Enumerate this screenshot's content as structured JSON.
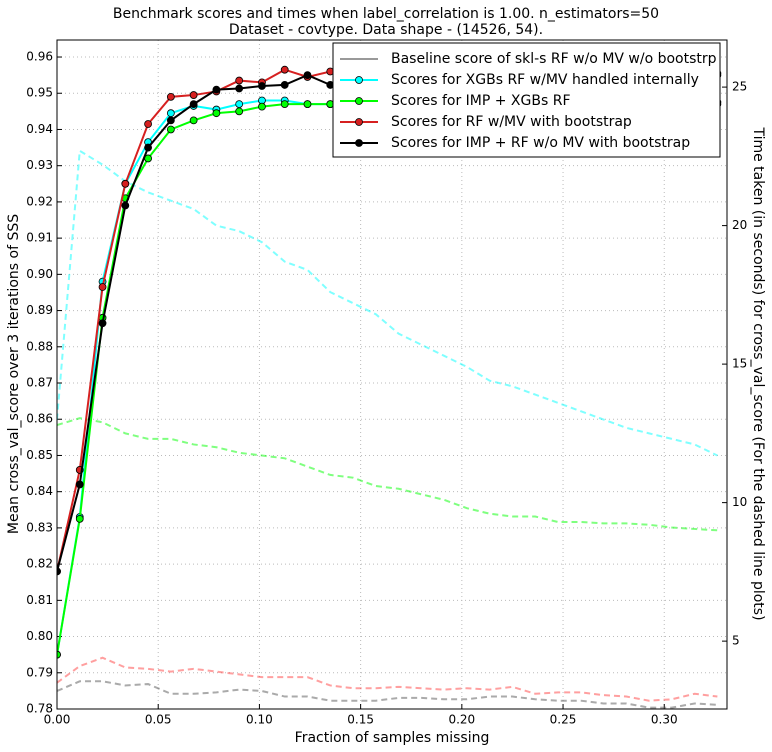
{
  "chart_data": {
    "type": "line",
    "title": "Benchmark scores and times when label_correlation is 1.00. n_estimators=50",
    "subtitle": "Dataset - covtype. Data shape - (14526, 54).",
    "x_label": "Fraction of samples missing",
    "y_label": "Mean cross_val_score over 3 iterations of SSS",
    "y2_label": "Time taken (in seconds) for cross_val_score (For the dashed line plots)",
    "x": [
      0,
      0.01125,
      0.0225,
      0.03375,
      0.045,
      0.05625,
      0.0675,
      0.07875,
      0.09,
      0.10125,
      0.1125,
      0.12375,
      0.135,
      0.14625,
      0.1575,
      0.16875,
      0.18,
      0.19125,
      0.2025,
      0.21375,
      0.225,
      0.23625,
      0.2475,
      0.25875,
      0.27,
      0.28125,
      0.2925,
      0.30375,
      0.315,
      0.32625
    ],
    "xlim": [
      0,
      0.331
    ],
    "ylim": [
      0.78,
      0.9647
    ],
    "y2lim": [
      2.55,
      26.7
    ],
    "xticks": [
      {
        "value": 0,
        "label": "0.00"
      },
      0.05,
      {
        "value": 0.1,
        "label": "0.10"
      },
      0.15,
      {
        "value": 0.2,
        "label": "0.20"
      },
      0.25,
      {
        "value": 0.3,
        "label": "0.30"
      }
    ],
    "yticks": [
      0.78,
      0.79,
      {
        "value": 0.8,
        "label": "0.80"
      },
      0.81,
      0.82,
      0.83,
      0.84,
      0.85,
      0.86,
      0.87,
      0.88,
      0.89,
      {
        "value": 0.9,
        "label": "0.90"
      },
      0.91,
      0.92,
      0.93,
      0.94,
      0.95,
      0.96
    ],
    "y2ticks": [
      5,
      10,
      15,
      20,
      25
    ],
    "grid": true,
    "legend_position": "upper right",
    "legend": [
      {
        "label": "Baseline score of skl-s RF w/o MV w/o bootstrp",
        "color": "#999999",
        "marker": false
      },
      {
        "label": "Scores for XGBs RF w/MV handled internally",
        "color": "#00ffff",
        "marker": true
      },
      {
        "label": "Scores for IMP + XGBs RF",
        "color": "#00ff00",
        "marker": true
      },
      {
        "label": "Scores for RF w/MV with bootstrap",
        "color": "#d62020",
        "marker": true
      },
      {
        "label": "Scores for IMP + RF w/o MV with bootstrap",
        "color": "#000000",
        "marker": true
      }
    ],
    "series": [
      {
        "color": "#00ffff",
        "dashed": true,
        "axis": "y2",
        "values": [
          13,
          22.7,
          22.2,
          21.6,
          21.2,
          20.9,
          20.6,
          20,
          19.8,
          19.4,
          18.7,
          18.4,
          17.6,
          17.2,
          16.8,
          16.1,
          15.7,
          15.3,
          14.9,
          14.4,
          14.2,
          13.9,
          13.6,
          13.3,
          13,
          12.7,
          12.5,
          12.3,
          12.1,
          11.7
        ]
      },
      {
        "color": "#00ff00",
        "dashed": true,
        "axis": "y2",
        "values": [
          12.8,
          13.05,
          12.9,
          12.5,
          12.3,
          12.3,
          12.1,
          12,
          11.8,
          11.7,
          11.6,
          11.3,
          11,
          10.9,
          10.6,
          10.5,
          10.3,
          10.1,
          9.8,
          9.6,
          9.5,
          9.5,
          9.3,
          9.3,
          9.25,
          9.25,
          9.2,
          9.1,
          9.05,
          9
        ]
      },
      {
        "color": "#ff4040",
        "dashed": true,
        "axis": "y2",
        "values": [
          3.5,
          4.1,
          4.4,
          4.05,
          4,
          3.9,
          4,
          3.9,
          3.8,
          3.7,
          3.7,
          3.7,
          3.4,
          3.3,
          3.3,
          3.35,
          3.3,
          3.25,
          3.3,
          3.25,
          3.35,
          3.1,
          3.15,
          3.15,
          3.05,
          3,
          2.85,
          2.9,
          3.1,
          3
        ]
      },
      {
        "color": "#555555",
        "dashed": true,
        "axis": "y2",
        "values": [
          3.2,
          3.55,
          3.55,
          3.4,
          3.45,
          3.1,
          3.1,
          3.15,
          3.25,
          3.2,
          3,
          3,
          2.85,
          2.85,
          2.85,
          2.95,
          2.95,
          2.9,
          2.9,
          3,
          3,
          2.9,
          2.85,
          2.85,
          2.75,
          2.75,
          2.6,
          2.6,
          2.75,
          2.7
        ]
      },
      {
        "color": "#00ffff",
        "dashed": false,
        "axis": "y",
        "values": [
          0.795,
          0.833,
          0.898,
          0.925,
          0.9365,
          0.9445,
          0.9465,
          0.9455,
          0.947,
          0.948,
          0.948,
          0.947,
          0.947,
          0.9465,
          0.947,
          0.947,
          0.947,
          0.947,
          0.9468,
          0.947,
          0.9465,
          0.9463,
          0.9465,
          0.9465,
          0.947,
          0.9475,
          0.948,
          0.9475,
          0.9475,
          0.947
        ]
      },
      {
        "color": "#00ff00",
        "dashed": false,
        "axis": "y",
        "values": [
          0.795,
          0.8325,
          0.888,
          0.921,
          0.932,
          0.94,
          0.9425,
          0.9445,
          0.945,
          0.9463,
          0.947,
          0.947,
          0.947,
          0.9453,
          0.9465,
          0.9468,
          0.9473,
          0.9485,
          0.948,
          0.9485,
          0.948,
          0.9475,
          0.948,
          0.9478,
          0.9475,
          0.948,
          0.949,
          0.9492,
          0.948,
          0.9475
        ]
      },
      {
        "color": "#d62020",
        "dashed": false,
        "axis": "y",
        "values": [
          0.818,
          0.846,
          0.8965,
          0.925,
          0.9415,
          0.949,
          0.9495,
          0.9505,
          0.9535,
          0.953,
          0.9565,
          0.9545,
          0.956,
          0.954,
          0.9555,
          0.954,
          0.9545,
          0.9545,
          0.9555,
          0.956,
          0.955,
          0.955,
          0.954,
          0.9555,
          0.9555,
          0.954,
          0.955,
          0.9555,
          0.956,
          0.9555
        ]
      },
      {
        "color": "#000000",
        "dashed": false,
        "axis": "y",
        "values": [
          0.818,
          0.842,
          0.8865,
          0.919,
          0.935,
          0.9425,
          0.947,
          0.951,
          0.9513,
          0.952,
          0.9523,
          0.955,
          0.9523,
          0.953,
          0.954,
          0.9538,
          0.955,
          0.956,
          0.9535,
          0.9555,
          0.9562,
          0.9555,
          0.956,
          0.957,
          0.952,
          0.955,
          0.9555,
          0.9565,
          0.954,
          0.955
        ]
      }
    ]
  }
}
